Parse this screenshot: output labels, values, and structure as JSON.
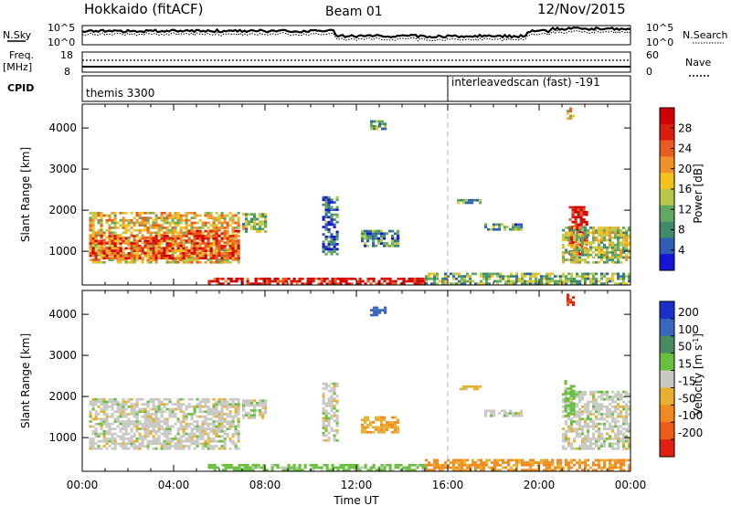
{
  "header": {
    "title": "Hokkaido (fitACF)",
    "beam": "Beam 01",
    "date": "12/Nov/2015"
  },
  "top_panels": {
    "nsky_label": "N.Sky",
    "nsearch_label": "N.Search",
    "noise_tick_high": "10^5",
    "noise_tick_low": "10^0",
    "freq_label": "Freq.",
    "freq_unit": "[MHz]",
    "freq_ticks": [
      "18",
      "8"
    ],
    "nave_label": "Nave",
    "nave_ticks": [
      "60",
      "0"
    ],
    "cpid_label": "CPID",
    "cpid_segments": [
      {
        "label": "themis 3300",
        "start_hour": 0,
        "end_hour": 16
      },
      {
        "label": "interleavedscan (fast) -191",
        "start_hour": 16,
        "end_hour": 24
      }
    ]
  },
  "axes": {
    "x_label": "Time UT",
    "x_ticks": [
      "00:00",
      "04:00",
      "08:00",
      "12:00",
      "16:00",
      "20:00",
      "00:00"
    ],
    "x_tick_hours": [
      0,
      4,
      8,
      12,
      16,
      20,
      24
    ],
    "y_label": "Slant Range [km]",
    "y_ticks": [
      "1000",
      "2000",
      "3000",
      "4000"
    ],
    "y_tick_values": [
      1000,
      2000,
      3000,
      4000
    ],
    "y_range": [
      180,
      4580
    ],
    "x_range_hours": [
      0,
      24
    ],
    "divider_hour": 16
  },
  "power_scale": {
    "label": "Power [dB]",
    "ticks": [
      "4",
      "8",
      "12",
      "16",
      "20",
      "24",
      "28"
    ],
    "colors": [
      "#1515d8",
      "#2f5fb5",
      "#3f8a6a",
      "#63a860",
      "#b8c94a",
      "#f2c21e",
      "#f19126",
      "#ea5a1e",
      "#dd1c0e",
      "#d00000"
    ]
  },
  "velocity_scale": {
    "label": "Velocity [m s^-1]",
    "ticks": [
      "200",
      "100",
      "50",
      "15",
      "-15",
      "-50",
      "-100",
      "-200"
    ],
    "colors": [
      "#1a30c8",
      "#3a66c0",
      "#4a8a60",
      "#6abf40",
      "#c9c9c4",
      "#e8b030",
      "#f08a20",
      "#ee5a18",
      "#e02010"
    ]
  },
  "chart_data": [
    {
      "type": "heatmap",
      "name": "power",
      "x_unit": "hours UT",
      "y_unit": "km",
      "regions": [
        {
          "t0": 0.3,
          "t1": 6.8,
          "r0": 700,
          "r1": 1950,
          "level": 0.55
        },
        {
          "t0": 0.3,
          "t1": 4.5,
          "r0": 800,
          "r1": 1400,
          "level": 0.75
        },
        {
          "t0": 4.5,
          "t1": 6.9,
          "r0": 800,
          "r1": 1500,
          "level": 0.8
        },
        {
          "t0": 7.0,
          "t1": 8.0,
          "r0": 1450,
          "r1": 1900,
          "level": 0.4
        },
        {
          "t0": 10.5,
          "t1": 11.2,
          "r0": 900,
          "r1": 2300,
          "level": 0.2
        },
        {
          "t0": 12.2,
          "t1": 13.8,
          "r0": 1100,
          "r1": 1500,
          "level": 0.25
        },
        {
          "t0": 12.6,
          "t1": 13.2,
          "r0": 3950,
          "r1": 4150,
          "level": 0.3
        },
        {
          "t0": 16.4,
          "t1": 17.4,
          "r0": 2150,
          "r1": 2250,
          "level": 0.3
        },
        {
          "t0": 17.6,
          "t1": 19.2,
          "r0": 1500,
          "r1": 1650,
          "level": 0.3
        },
        {
          "t0": 21.3,
          "t1": 22.1,
          "r0": 900,
          "r1": 2100,
          "level": 0.95
        },
        {
          "t0": 21.0,
          "t1": 24.0,
          "r0": 700,
          "r1": 1600,
          "level": 0.45
        },
        {
          "t0": 21.2,
          "t1": 21.5,
          "r0": 4200,
          "r1": 4450,
          "level": 0.5
        },
        {
          "t0": 5.5,
          "t1": 15.0,
          "r0": 180,
          "r1": 330,
          "level": 0.9
        },
        {
          "t0": 15.0,
          "t1": 24.0,
          "r0": 180,
          "r1": 450,
          "level": 0.35
        }
      ]
    },
    {
      "type": "heatmap",
      "name": "velocity",
      "x_unit": "hours UT",
      "y_unit": "km",
      "regions": [
        {
          "t0": 0.3,
          "t1": 6.8,
          "r0": 700,
          "r1": 1950,
          "velocity": 0
        },
        {
          "t0": 7.0,
          "t1": 8.0,
          "r0": 1450,
          "r1": 1900,
          "velocity": 0
        },
        {
          "t0": 10.5,
          "t1": 11.2,
          "r0": 900,
          "r1": 2300,
          "velocity": 0
        },
        {
          "t0": 12.2,
          "t1": 13.8,
          "r0": 1100,
          "r1": 1500,
          "velocity": -40
        },
        {
          "t0": 12.6,
          "t1": 13.2,
          "r0": 3950,
          "r1": 4150,
          "velocity": 150
        },
        {
          "t0": 16.4,
          "t1": 17.4,
          "r0": 2150,
          "r1": 2250,
          "velocity": -30
        },
        {
          "t0": 17.6,
          "t1": 19.2,
          "r0": 1500,
          "r1": 1650,
          "velocity": 0
        },
        {
          "t0": 21.0,
          "t1": 24.0,
          "r0": 700,
          "r1": 2100,
          "velocity": 0
        },
        {
          "t0": 21.1,
          "t1": 21.5,
          "r0": 1500,
          "r1": 2400,
          "velocity": 30
        },
        {
          "t0": 21.2,
          "t1": 21.5,
          "r0": 4200,
          "r1": 4450,
          "velocity": -200
        },
        {
          "t0": 5.5,
          "t1": 15.0,
          "r0": 180,
          "r1": 330,
          "velocity": 30
        },
        {
          "t0": 15.0,
          "t1": 24.0,
          "r0": 180,
          "r1": 450,
          "velocity": -60
        }
      ]
    }
  ]
}
